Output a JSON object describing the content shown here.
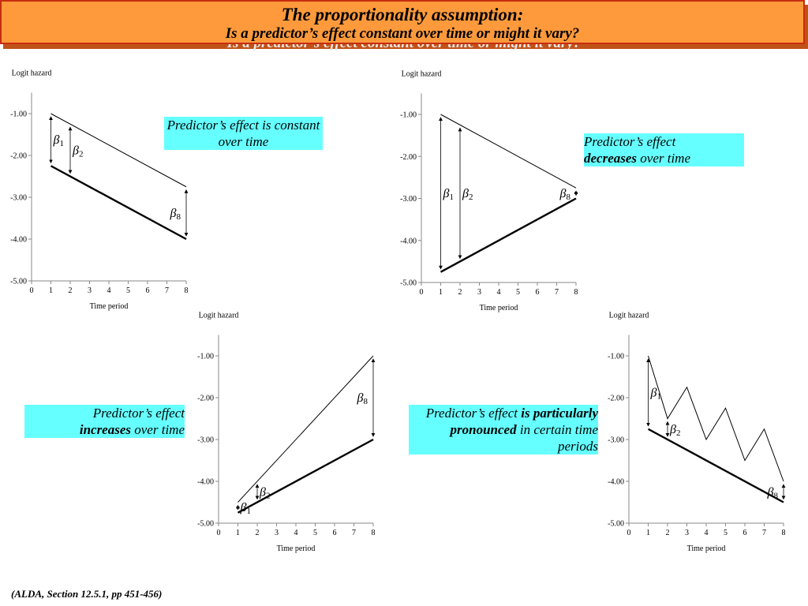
{
  "title": {
    "main": "The proportionality assumption:",
    "sub": "Is a predictor’s effect constant over time or might it vary?"
  },
  "citation": "(ALDA, Section 12.5.1, pp 451-456)",
  "callouts": {
    "constant": {
      "pre": "Predictor’s effect is constant over time",
      "bold": "",
      "post": ""
    },
    "decreases": {
      "pre": "Predictor’s effect ",
      "bold": "decreases",
      "post": " over time"
    },
    "increases": {
      "pre": "Predictor’s effect ",
      "bold": "increases",
      "post": " over time"
    },
    "pronounced": {
      "pre": "Predictor’s effect ",
      "bold": "is particularly pronounced",
      "post": " in certain time periods"
    }
  },
  "colors": {
    "title_bg": "#ff9a3c",
    "title_border": "#c62d10",
    "callout_bg": "#66ffff"
  },
  "chart_data": [
    {
      "type": "line",
      "ylabel": "Logit hazard",
      "xlabel": "Time period",
      "xlim": [
        0,
        8
      ],
      "ylim": [
        -5,
        -0.5
      ],
      "xticks": [
        "0",
        "1",
        "2",
        "3",
        "4",
        "5",
        "6",
        "7",
        "8"
      ],
      "yticks": [
        "-1.00",
        "-2.00",
        "-3.00",
        "-4.00",
        "-5.00"
      ],
      "series": [
        {
          "x": [
            1,
            8
          ],
          "values": [
            -1.0,
            -2.75
          ]
        },
        {
          "x": [
            1,
            8
          ],
          "values": [
            -2.25,
            -4.0
          ]
        }
      ],
      "annotations": [
        {
          "label": "β1",
          "x": 1,
          "from": -1.0,
          "to": -2.25
        },
        {
          "label": "β2",
          "x": 2,
          "from": -1.25,
          "to": -2.5
        },
        {
          "label": "β8",
          "x": 8,
          "from": -2.75,
          "to": -4.0
        }
      ]
    },
    {
      "type": "line",
      "ylabel": "Logit hazard",
      "xlabel": "Time period",
      "xlim": [
        0,
        8
      ],
      "ylim": [
        -5,
        -0.5
      ],
      "xticks": [
        "0",
        "1",
        "2",
        "3",
        "4",
        "5",
        "6",
        "7",
        "8"
      ],
      "yticks": [
        "-1.00",
        "-2.00",
        "-3.00",
        "-4.00",
        "-5.00"
      ],
      "series": [
        {
          "x": [
            1,
            8
          ],
          "values": [
            -1.0,
            -2.75
          ]
        },
        {
          "x": [
            1,
            8
          ],
          "values": [
            -4.75,
            -3.0
          ]
        }
      ],
      "annotations": [
        {
          "label": "β1",
          "x": 1,
          "from": -1.0,
          "to": -4.75
        },
        {
          "label": "β2",
          "x": 2,
          "from": -1.25,
          "to": -4.5
        },
        {
          "label": "β8",
          "x": 8,
          "from": -2.75,
          "to": -3.0
        }
      ]
    },
    {
      "type": "line",
      "ylabel": "Logit hazard",
      "xlabel": "Time period",
      "xlim": [
        0,
        8
      ],
      "ylim": [
        -5,
        -0.5
      ],
      "xticks": [
        "0",
        "1",
        "2",
        "3",
        "4",
        "5",
        "6",
        "7",
        "8"
      ],
      "yticks": [
        "-1.00",
        "-2.00",
        "-3.00",
        "-4.00",
        "-5.00"
      ],
      "series": [
        {
          "x": [
            1,
            8
          ],
          "values": [
            -4.5,
            -1.0
          ]
        },
        {
          "x": [
            1,
            8
          ],
          "values": [
            -4.75,
            -3.0
          ]
        }
      ],
      "annotations": [
        {
          "label": "β1",
          "x": 1,
          "from": -4.5,
          "to": -4.75
        },
        {
          "label": "β2",
          "x": 2,
          "from": -4.0,
          "to": -4.5
        },
        {
          "label": "β8",
          "x": 8,
          "from": -1.0,
          "to": -3.0
        }
      ]
    },
    {
      "type": "line",
      "ylabel": "Logit hazard",
      "xlabel": "Time period",
      "xlim": [
        0,
        8
      ],
      "ylim": [
        -5,
        -0.5
      ],
      "xticks": [
        "0",
        "1",
        "2",
        "3",
        "4",
        "5",
        "6",
        "7",
        "8"
      ],
      "yticks": [
        "-1.00",
        "-2.00",
        "-3.00",
        "-4.00",
        "-5.00"
      ],
      "series": [
        {
          "x": [
            1,
            2,
            3,
            4,
            5,
            6,
            7,
            8
          ],
          "values": [
            -1.0,
            -2.5,
            -1.75,
            -3.0,
            -2.25,
            -3.5,
            -2.75,
            -4.0
          ]
        },
        {
          "x": [
            1,
            8
          ],
          "values": [
            -2.75,
            -4.5
          ]
        }
      ],
      "annotations": [
        {
          "label": "β1",
          "x": 1,
          "from": -1.0,
          "to": -2.75
        },
        {
          "label": "β2",
          "x": 2,
          "from": -2.5,
          "to": -3.0
        },
        {
          "label": "β8",
          "x": 8,
          "from": -4.0,
          "to": -4.5
        }
      ]
    }
  ]
}
